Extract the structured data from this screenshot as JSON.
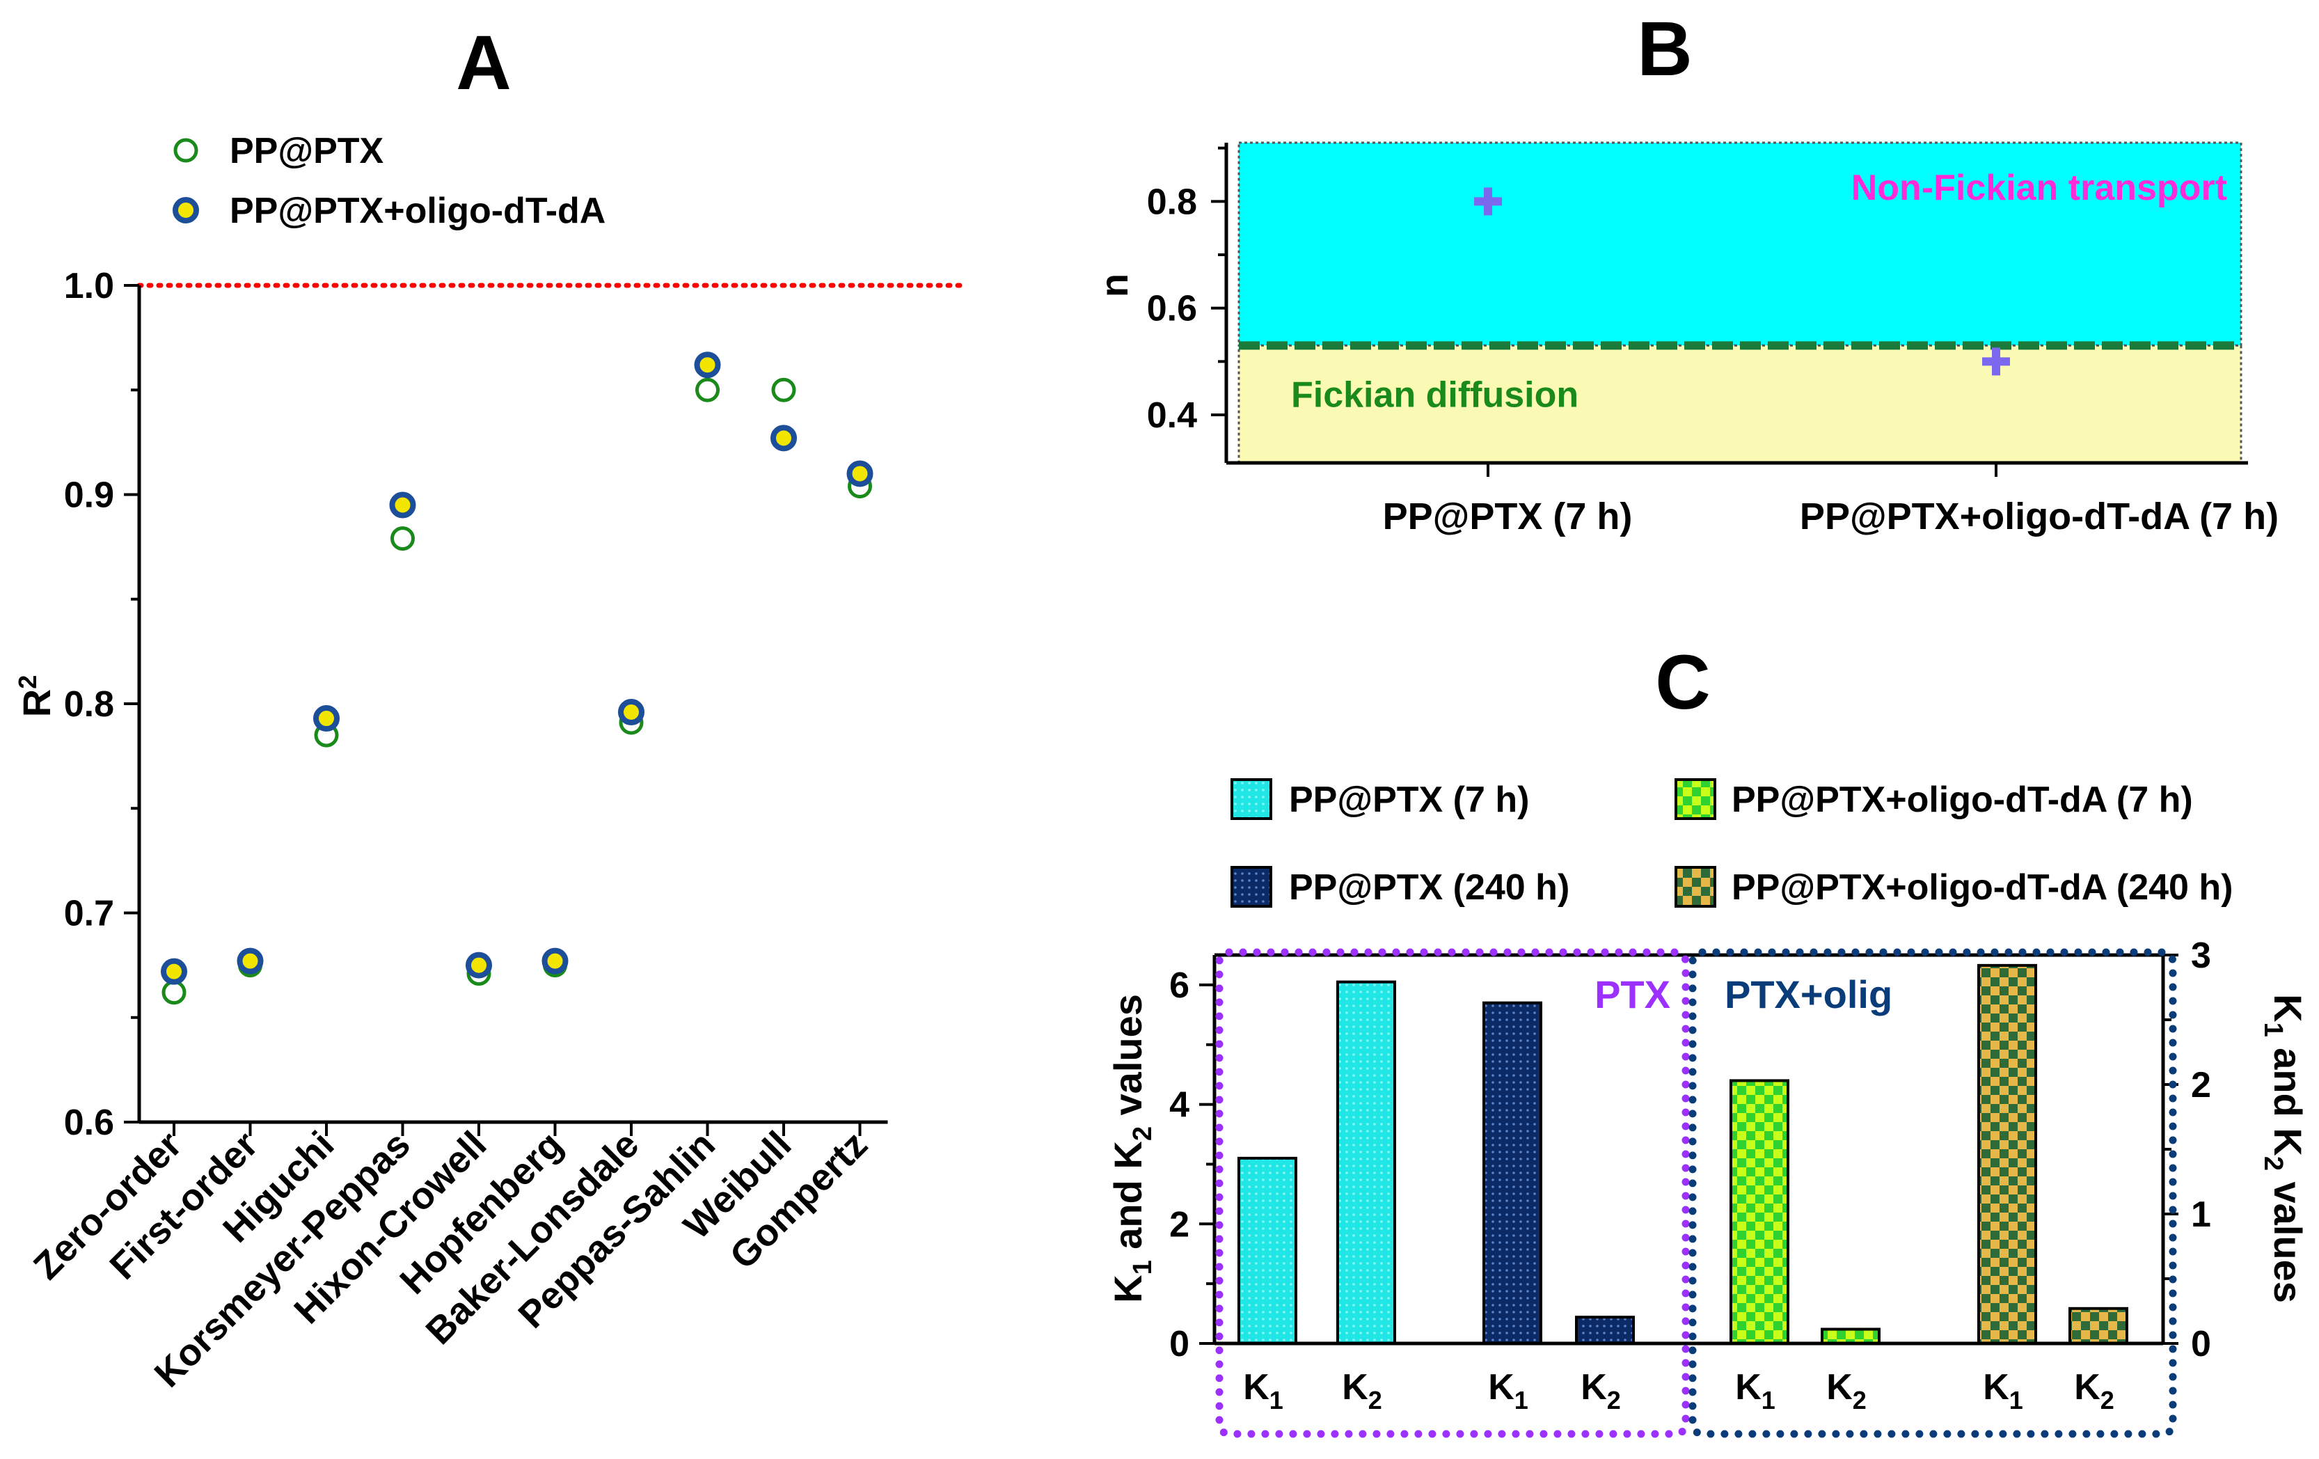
{
  "chart_data": [
    {
      "panel": "A",
      "type": "scatter",
      "title": "A",
      "ylabel": "R",
      "ylabel_sup": "2",
      "ylim": [
        0.6,
        1.0
      ],
      "yticks": [
        "0.6",
        "0.7",
        "0.8",
        "0.9",
        "1.0"
      ],
      "reference_line": {
        "y": 1.0,
        "style": "dotted",
        "color": "#ff0000"
      },
      "categories": [
        "Zero-order",
        "First-order",
        "Higuchi",
        "Korsmeyer-Peppas",
        "Hixon-Crowell",
        "Hopfenberg",
        "Baker-Lonsdale",
        "Peppas-Sahlin",
        "Weibull",
        "Gompertz"
      ],
      "series": [
        {
          "name": "PP@PTX",
          "marker": "open-circle",
          "color": "#1a8a1a",
          "values": [
            0.662,
            0.675,
            0.785,
            0.879,
            0.671,
            0.675,
            0.791,
            0.95,
            0.95,
            0.904
          ]
        },
        {
          "name": "PP@PTX+oligo-dT-dA",
          "marker": "filled-circle",
          "color": "#1d4e9a",
          "fill": "#f2e600",
          "values": [
            0.672,
            0.677,
            0.793,
            0.895,
            0.675,
            0.677,
            0.796,
            0.962,
            0.927,
            0.91
          ]
        }
      ],
      "legend": "top-left"
    },
    {
      "panel": "B",
      "type": "scatter",
      "title": "B",
      "ylabel": "n",
      "ylim": [
        0.31,
        0.91
      ],
      "yticks": [
        "0.4",
        "0.6",
        "0.8"
      ],
      "threshold": 0.53,
      "regions": {
        "upper_label": "Non-Fickian transport",
        "lower_label": "Fickian diffusion"
      },
      "categories": [
        "PP@PTX (7 h)",
        "PP@PTX+oligo-dT-dA (7 h)"
      ],
      "values": [
        0.8,
        0.5
      ],
      "marker": "plus",
      "colors": {
        "upper": "#00ffff",
        "lower": "#fafab4",
        "threshold": "#1a7a3a",
        "marker": "#7b68ee",
        "upper_text": "#ff2ad8",
        "lower_text": "#1a8a1a"
      }
    },
    {
      "panel": "C",
      "type": "bar",
      "title": "C",
      "ylabel_left": "K1 and K2 values",
      "ylabel_right": "K1 and K2 values",
      "ylim_left": [
        0,
        6.5
      ],
      "ylim_right": [
        0,
        3.0
      ],
      "yticks_left": [
        "0",
        "2",
        "4",
        "6"
      ],
      "yticks_right": [
        "0",
        "1",
        "2",
        "3"
      ],
      "groups": [
        {
          "name": "PTX",
          "axis": "left",
          "box_color": "#9b30ff",
          "label_color": "#9b30ff"
        },
        {
          "name": "PTX+olig",
          "axis": "right",
          "box_color": "#0b3c7a",
          "label_color": "#0b3c7a"
        }
      ],
      "series": [
        {
          "name": "PP@PTX (7 h)",
          "axis": "left",
          "pattern": "dots-light",
          "color": "#20e6e6",
          "values": {
            "K1": 3.1,
            "K2": 6.05
          }
        },
        {
          "name": "PP@PTX (240 h)",
          "axis": "left",
          "pattern": "dots-dark",
          "color": "#0b2a66",
          "values": {
            "K1": 5.7,
            "K2": 0.44
          }
        },
        {
          "name": "PP@PTX+oligo-dT-dA (7 h)",
          "axis": "right",
          "pattern": "checker-light",
          "color": "#c8ff1a",
          "values": {
            "K1": 2.03,
            "K2": 0.11
          }
        },
        {
          "name": "PP@PTX+oligo-dT-dA (240 h)",
          "axis": "right",
          "pattern": "checker-dark",
          "color": "#2f6b38",
          "values": {
            "K1": 2.92,
            "K2": 0.27
          }
        }
      ],
      "bar_labels": [
        "K",
        "K"
      ],
      "bar_label_subs": [
        "1",
        "2"
      ],
      "legend": "top"
    }
  ]
}
